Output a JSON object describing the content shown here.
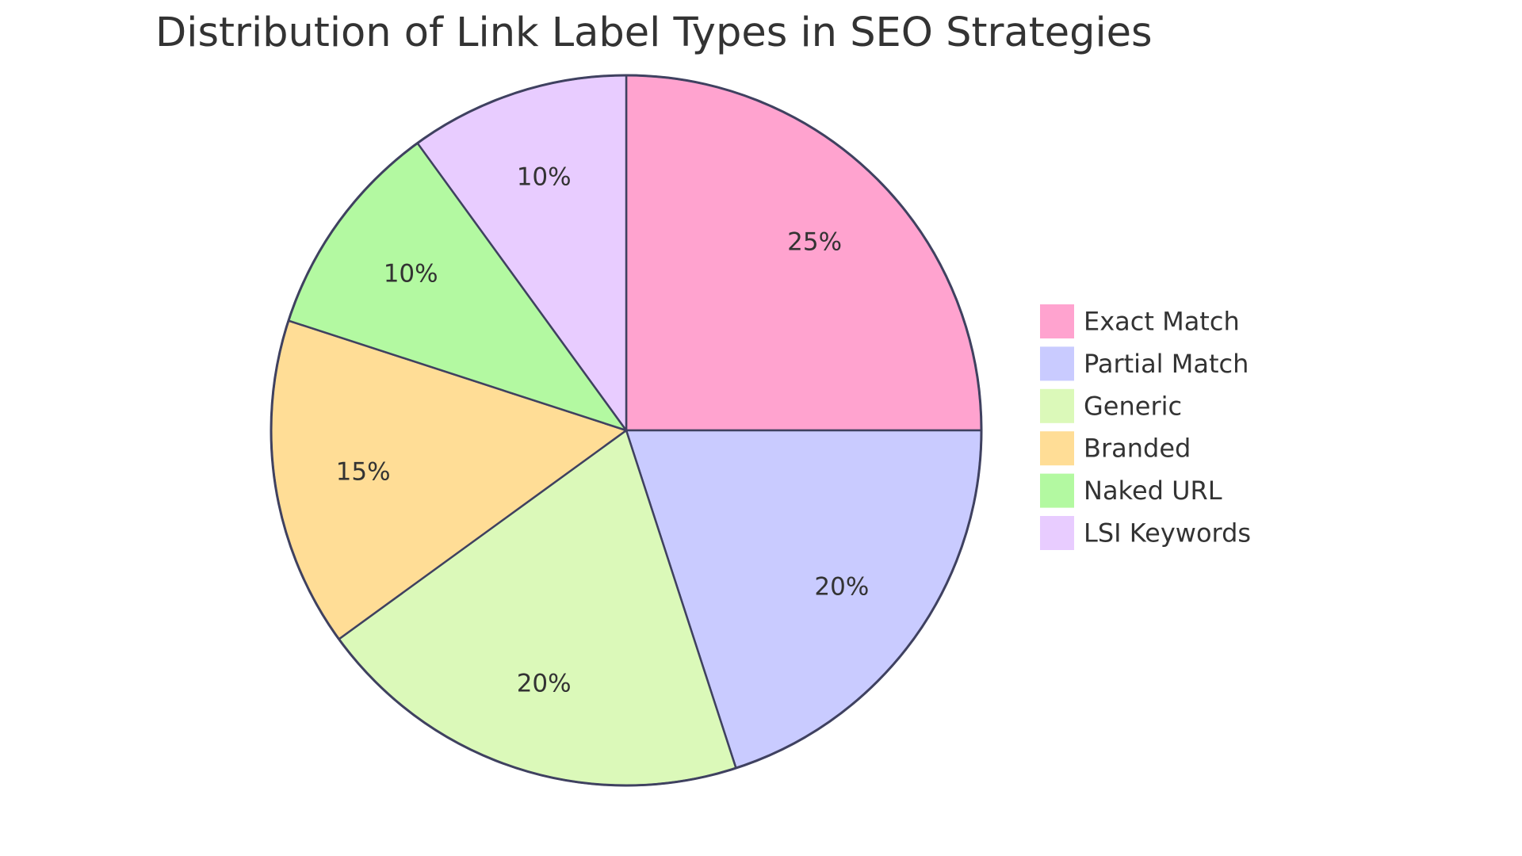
{
  "chart_data": {
    "type": "pie",
    "title": "Distribution of Link Label Types in SEO Strategies",
    "slices": [
      {
        "label": "Exact Match",
        "value": 25,
        "display": "25%",
        "color": "#FFA3CF"
      },
      {
        "label": "Partial Match",
        "value": 20,
        "display": "20%",
        "color": "#C9CBFF"
      },
      {
        "label": "Generic",
        "value": 20,
        "display": "20%",
        "color": "#DBF9B9"
      },
      {
        "label": "Branded",
        "value": 15,
        "display": "15%",
        "color": "#FFDD96"
      },
      {
        "label": "Naked URL",
        "value": 10,
        "display": "10%",
        "color": "#B3F9A1"
      },
      {
        "label": "LSI Keywords",
        "value": 10,
        "display": "10%",
        "color": "#E8CCFF"
      }
    ],
    "stroke_color": "#3F4160",
    "legend_position": "right"
  }
}
